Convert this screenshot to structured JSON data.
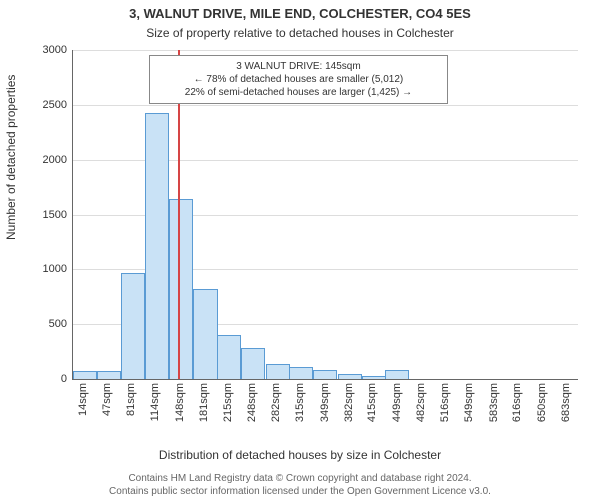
{
  "chart": {
    "type": "histogram",
    "title_line1": "3, WALNUT DRIVE, MILE END, COLCHESTER, CO4 5ES",
    "title_line2": "Size of property relative to detached houses in Colchester",
    "title_fontsize_pt": 13,
    "subtitle_fontsize_pt": 12,
    "ylabel": "Number of detached properties",
    "xlabel": "Distribution of detached houses by size in Colchester",
    "axis_label_fontsize_pt": 12,
    "tick_fontsize_pt": 11,
    "background_color": "#ffffff",
    "plot_background_color": "#ffffff",
    "axis_color": "#666666",
    "grid_color": "#dddddd",
    "text_color": "#333333",
    "bar_fill_color": "#c9e2f6",
    "bar_border_color": "#5a9bd4",
    "marker_line_color": "#d64545",
    "marker_value_sqm": 145,
    "ylim": [
      0,
      3000
    ],
    "ytick_step": 500,
    "yticks": [
      0,
      500,
      1000,
      1500,
      2000,
      2500,
      3000
    ],
    "xtick_labels": [
      "14sqm",
      "47sqm",
      "81sqm",
      "114sqm",
      "148sqm",
      "181sqm",
      "215sqm",
      "248sqm",
      "282sqm",
      "315sqm",
      "349sqm",
      "382sqm",
      "415sqm",
      "449sqm",
      "482sqm",
      "516sqm",
      "549sqm",
      "583sqm",
      "616sqm",
      "650sqm",
      "683sqm"
    ],
    "xlim_sqm": [
      0,
      700
    ],
    "bin_width_sqm": 33.33,
    "bins": [
      {
        "start_sqm": 0,
        "count": 70
      },
      {
        "start_sqm": 33,
        "count": 70
      },
      {
        "start_sqm": 67,
        "count": 970
      },
      {
        "start_sqm": 100,
        "count": 2430
      },
      {
        "start_sqm": 133,
        "count": 1640
      },
      {
        "start_sqm": 167,
        "count": 820
      },
      {
        "start_sqm": 200,
        "count": 400
      },
      {
        "start_sqm": 233,
        "count": 280
      },
      {
        "start_sqm": 267,
        "count": 140
      },
      {
        "start_sqm": 300,
        "count": 110
      },
      {
        "start_sqm": 333,
        "count": 80
      },
      {
        "start_sqm": 367,
        "count": 45
      },
      {
        "start_sqm": 400,
        "count": 30
      },
      {
        "start_sqm": 433,
        "count": 80
      },
      {
        "start_sqm": 467,
        "count": 0
      },
      {
        "start_sqm": 500,
        "count": 0
      },
      {
        "start_sqm": 533,
        "count": 0
      },
      {
        "start_sqm": 567,
        "count": 0
      },
      {
        "start_sqm": 600,
        "count": 0
      },
      {
        "start_sqm": 633,
        "count": 0
      },
      {
        "start_sqm": 667,
        "count": 0
      }
    ],
    "annotation": {
      "line1": "3 WALNUT DRIVE: 145sqm",
      "line2": "← 78% of detached houses are smaller (5,012)",
      "line3": "22% of semi-detached houses are larger (1,425) →",
      "fontsize_pt": 10,
      "border_color": "#888888",
      "background_color": "#ffffff",
      "left_sqm": 105,
      "right_sqm": 520,
      "top_value": 2950,
      "bottom_value": 2550
    },
    "footer_line1": "Contains HM Land Registry data © Crown copyright and database right 2024.",
    "footer_line2": "Contains public sector information licensed under the Open Government Licence v3.0.",
    "footer_fontsize_pt": 10,
    "footer_color": "#666666"
  }
}
